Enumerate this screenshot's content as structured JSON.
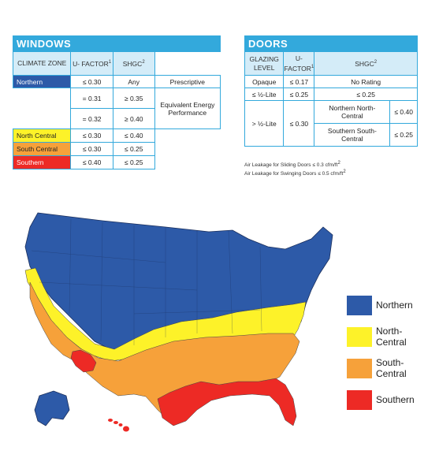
{
  "windows": {
    "title": "WINDOWS",
    "col_zone": "CLIMATE ZONE",
    "col_u": "U- FACTOR",
    "col_u_sup": "1",
    "col_shgc": "SHGC",
    "col_shgc_sup": "2",
    "rows": [
      {
        "zone": "Northern",
        "u": "≤ 0.30",
        "shgc": "Any",
        "note": "Prescriptive"
      },
      {
        "zone": "",
        "u": "= 0.31",
        "shgc": "≥ 0.35",
        "note": "Equivalent Energy Performance"
      },
      {
        "zone": "",
        "u": "= 0.32",
        "shgc": "≥ 0.40"
      },
      {
        "zone": "North Central",
        "u": "≤ 0.30",
        "shgc": "≤ 0.40"
      },
      {
        "zone": "South Central",
        "u": "≤ 0.30",
        "shgc": "≤ 0.25"
      },
      {
        "zone": "Southern",
        "u": "≤ 0.40",
        "shgc": "≤ 0.25"
      }
    ]
  },
  "doors": {
    "title": "DOORS",
    "col_glazing": "GLAZING LEVEL",
    "col_u": "U- FACTOR",
    "col_u_sup": "1",
    "col_shgc": "SHGC",
    "col_shgc_sup": "2",
    "opaque": {
      "level": "Opaque",
      "u": "≤ 0.17",
      "shgc": "No Rating"
    },
    "half": {
      "level": "≤ ½-Lite",
      "u": "≤ 0.25",
      "shgc": "≤ 0.25"
    },
    "over_half": {
      "level": "> ½-Lite",
      "u": "≤ 0.30",
      "sub": [
        {
          "zone": "Northern North-Central",
          "shgc": "≤ 0.40"
        },
        {
          "zone": "Southern South-Central",
          "shgc": "≤ 0.25"
        }
      ]
    },
    "air_sliding": "Air Leakage for Sliding Doors ≤ 0.3 cfm/ft",
    "air_swinging": "Air Leakage for Swinging Doors ≤ 0.5 cfm/ft",
    "air_sup": "2"
  },
  "legend": [
    {
      "label": "Northern",
      "color": "#2d5aa8"
    },
    {
      "label": "North-Central",
      "color": "#fdf229"
    },
    {
      "label": "South-Central",
      "color": "#f6a13a"
    },
    {
      "label": "Southern",
      "color": "#ed2a25"
    }
  ],
  "colors": {
    "header_blue": "#33a9dc",
    "northern": "#2d5aa8",
    "north_central": "#fdf229",
    "south_central": "#f6a13a",
    "southern": "#ed2a25"
  }
}
